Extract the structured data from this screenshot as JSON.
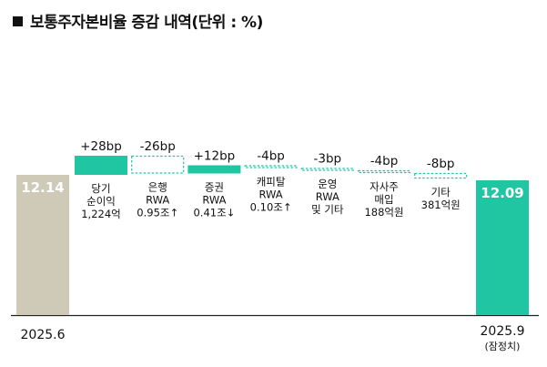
{
  "title": "보통주자본비율 증감 내역(단위 : %)",
  "chart_data": {
    "type": "bar",
    "subtype": "waterfall",
    "start": {
      "label": "2025.6",
      "value": 12.14,
      "value_label": "12.14",
      "color": "#cfc9b8"
    },
    "end": {
      "label": "2025.9",
      "sublabel": "(잠정치)",
      "value": 12.09,
      "value_label": "12.09",
      "color": "#1fc6a1"
    },
    "steps": [
      {
        "delta_bp": 28,
        "delta_label": "+28bp",
        "desc": [
          "당기",
          "순이익",
          "1,224억"
        ]
      },
      {
        "delta_bp": -26,
        "delta_label": "-26bp",
        "desc": [
          "은행",
          "RWA",
          "0.95조↑"
        ]
      },
      {
        "delta_bp": 12,
        "delta_label": "+12bp",
        "desc": [
          "증권",
          "RWA",
          "0.41조↓"
        ]
      },
      {
        "delta_bp": -4,
        "delta_label": "-4bp",
        "desc": [
          "캐피탈",
          "RWA",
          "0.10조↑"
        ]
      },
      {
        "delta_bp": -3,
        "delta_label": "-3bp",
        "desc": [
          "운영",
          "RWA",
          "및 기타"
        ]
      },
      {
        "delta_bp": -4,
        "delta_label": "-4bp",
        "desc": [
          "자사주",
          "매입",
          "188억원"
        ]
      },
      {
        "delta_bp": -8,
        "delta_label": "-8bp",
        "desc": [
          "기타",
          "381억원"
        ]
      }
    ],
    "colors": {
      "positive": "#1fc6a1",
      "negative_outline": "#1fc6a1",
      "start": "#cfc9b8"
    }
  }
}
